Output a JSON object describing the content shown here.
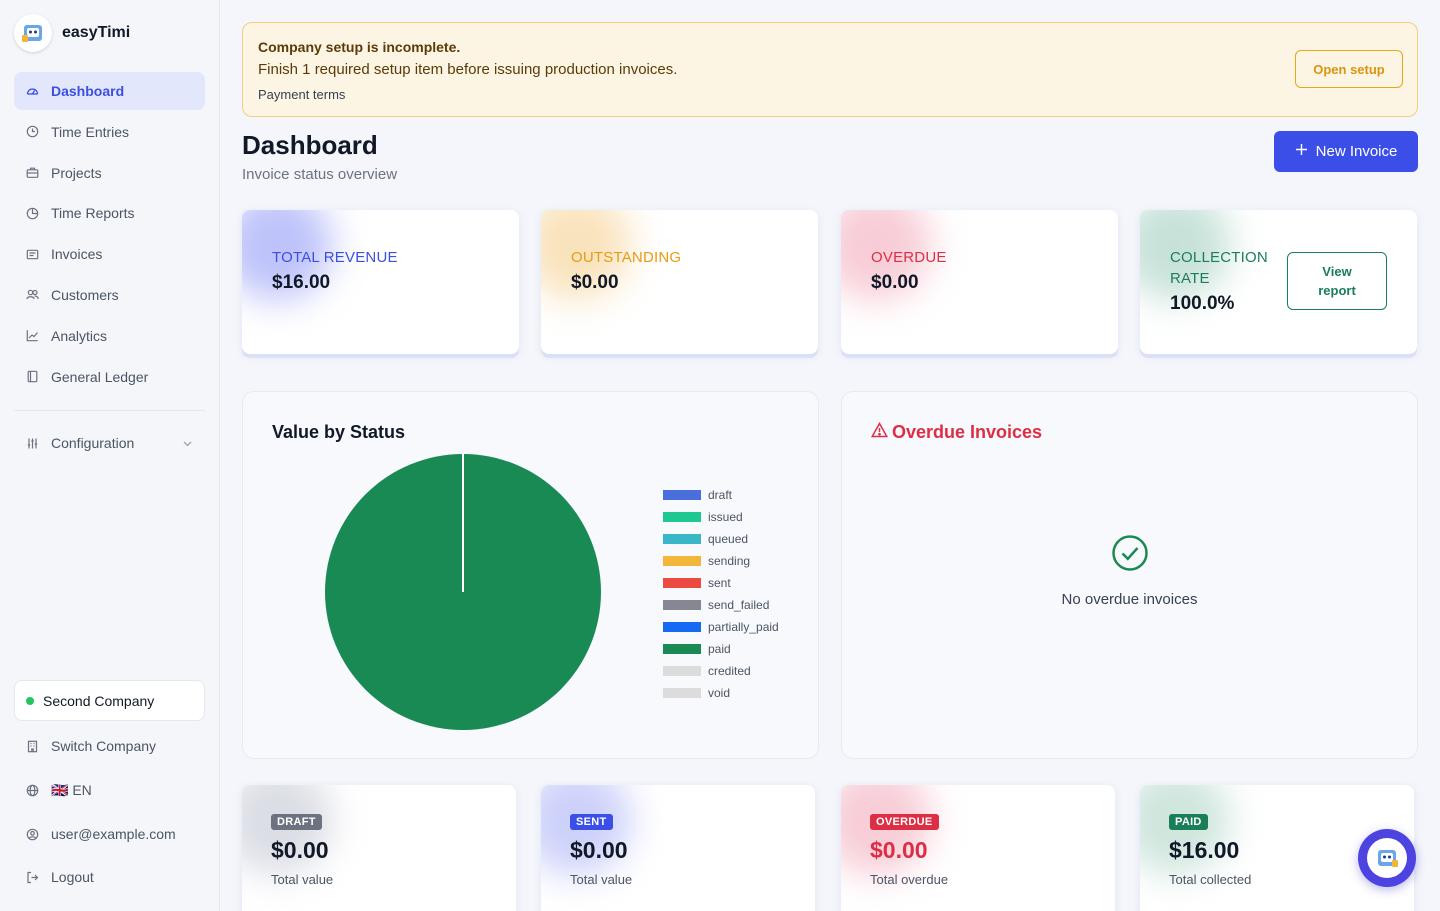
{
  "brand": {
    "name": "easyTimi"
  },
  "sidebar": {
    "items": [
      {
        "label": "Dashboard",
        "icon": "gauge-icon",
        "active": true
      },
      {
        "label": "Time Entries",
        "icon": "clock-icon"
      },
      {
        "label": "Projects",
        "icon": "briefcase-icon"
      },
      {
        "label": "Time Reports",
        "icon": "pie-chart-icon"
      },
      {
        "label": "Invoices",
        "icon": "receipt-icon"
      },
      {
        "label": "Customers",
        "icon": "users-icon"
      },
      {
        "label": "Analytics",
        "icon": "trend-chart-icon"
      },
      {
        "label": "General Ledger",
        "icon": "book-icon"
      }
    ],
    "configuration": "Configuration",
    "company": "Second Company",
    "switch_company": "Switch Company",
    "language": "🇬🇧 EN",
    "user": "user@example.com",
    "logout": "Logout"
  },
  "alert": {
    "title": "Company setup is incomplete.",
    "text": "Finish 1 required setup item before issuing production invoices.",
    "item": "Payment terms",
    "button": "Open setup"
  },
  "header": {
    "title": "Dashboard",
    "subtitle": "Invoice status overview",
    "new_invoice": "New Invoice"
  },
  "stats": [
    {
      "label": "TOTAL REVENUE",
      "value": "$16.00",
      "color": "#3b4fe0"
    },
    {
      "label": "OUTSTANDING",
      "value": "$0.00",
      "color": "#e89a12"
    },
    {
      "label": "OVERDUE",
      "value": "$0.00",
      "color": "#dc2e45"
    },
    {
      "label": "COLLECTION RATE",
      "value": "100.0%",
      "color": "#1a7f58",
      "button": "View report"
    }
  ],
  "status_chart": {
    "title": "Value by Status",
    "chart_data": {
      "type": "pie",
      "title": "Value by Status",
      "legend_position": "right",
      "categories": [
        "draft",
        "issued",
        "queued",
        "sending",
        "sent",
        "send_failed",
        "partially_paid",
        "paid",
        "credited",
        "void"
      ],
      "values": [
        0,
        0,
        0,
        0,
        0,
        0,
        0,
        16,
        0,
        0
      ],
      "colors": [
        "#4a6fdc",
        "#1fc890",
        "#39b7c9",
        "#f2b63a",
        "#ea4a3f",
        "#858792",
        "#1569f2",
        "#1a8a55",
        "#dcdcdc",
        "#dcdcdc"
      ]
    }
  },
  "overdue_panel": {
    "title": "Overdue Invoices",
    "empty": "No overdue invoices"
  },
  "summary": [
    {
      "badge": "DRAFT",
      "value": "$0.00",
      "caption": "Total value",
      "badge_color": "#6b7280",
      "value_color": "#111827"
    },
    {
      "badge": "SENT",
      "value": "$0.00",
      "caption": "Total value",
      "badge_color": "#3b4fe8",
      "value_color": "#111827"
    },
    {
      "badge": "OVERDUE",
      "value": "$0.00",
      "caption": "Total overdue",
      "badge_color": "#dc2e45",
      "value_color": "#dc2e45"
    },
    {
      "badge": "PAID",
      "value": "$16.00",
      "caption": "Total collected",
      "badge_color": "#1a7f58",
      "value_color": "#111827"
    }
  ]
}
